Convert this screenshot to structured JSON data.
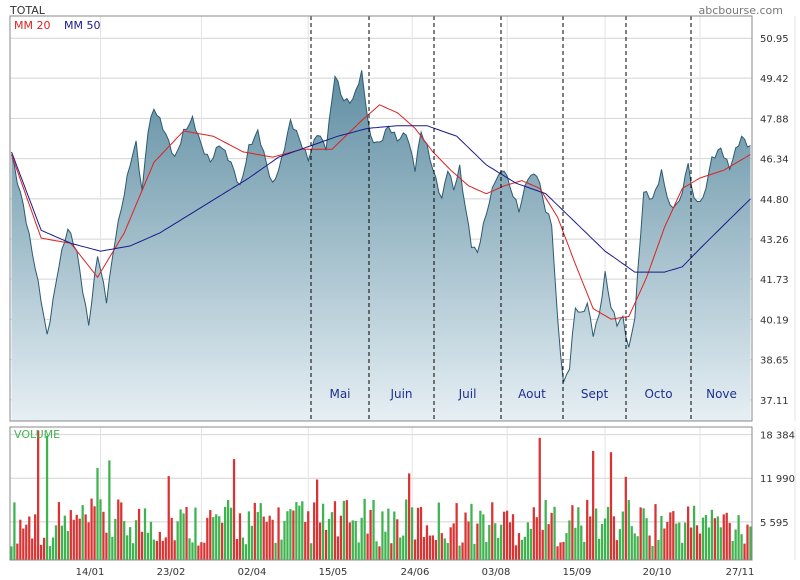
{
  "header": {
    "title": "TOTAL",
    "source": "abcbourse.com",
    "legend_mm20": "MM 20",
    "legend_mm50": "MM 50",
    "volume_label": "VOLUME"
  },
  "colors": {
    "area_top": "#5f8ea2",
    "area_bottom": "#e6eff4",
    "price_line": "#2d5a70",
    "mm20": "#dd2222",
    "mm50": "#1a1a8c",
    "vol_up": "#3fb34f",
    "vol_down": "#d93434",
    "grid": "#d4d4d4",
    "frame": "#888888",
    "month_text": "#1f2f8f",
    "volume_text": "#3fb34f"
  },
  "chart_data": [
    {
      "type": "area",
      "title": "TOTAL",
      "y_ticks": [
        "50.95",
        "49.42",
        "47.88",
        "46.34",
        "44.80",
        "43.26",
        "41.73",
        "40.19",
        "38.65",
        "37.11"
      ],
      "ylim": [
        36.3,
        51.8
      ],
      "x_ticks": [
        "14/01",
        "23/02",
        "02/04",
        "15/05",
        "24/06",
        "03/08",
        "15/09",
        "20/10",
        "27/11"
      ],
      "month_labels": [
        "Mai",
        "Juin",
        "Juil",
        "Aout",
        "Sept",
        "Octo",
        "Nove"
      ],
      "grid": true,
      "legend": "top-left",
      "session_count": 250,
      "series": [
        {
          "name": "TOTAL",
          "anchors": [
            [
              0,
              46.5
            ],
            [
              4,
              44.6
            ],
            [
              7,
              42.7
            ],
            [
              10,
              40.9
            ],
            [
              12,
              39.6
            ],
            [
              16,
              42.3
            ],
            [
              19,
              43.6
            ],
            [
              22,
              42.8
            ],
            [
              24,
              41.4
            ],
            [
              26,
              40.0
            ],
            [
              29,
              42.6
            ],
            [
              32,
              40.9
            ],
            [
              35,
              43.4
            ],
            [
              38,
              45.0
            ],
            [
              40,
              46.1
            ],
            [
              42,
              46.9
            ],
            [
              44,
              45.1
            ],
            [
              46,
              47.5
            ],
            [
              48,
              48.3
            ],
            [
              52,
              47.2
            ],
            [
              55,
              46.4
            ],
            [
              58,
              47.4
            ],
            [
              61,
              47.8
            ],
            [
              64,
              46.8
            ],
            [
              67,
              46.3
            ],
            [
              70,
              46.9
            ],
            [
              74,
              46.1
            ],
            [
              77,
              45.3
            ],
            [
              80,
              46.8
            ],
            [
              83,
              47.3
            ],
            [
              86,
              46.1
            ],
            [
              88,
              45.4
            ],
            [
              91,
              46.3
            ],
            [
              94,
              47.7
            ],
            [
              97,
              47.1
            ],
            [
              100,
              46.4
            ],
            [
              103,
              47.3
            ],
            [
              106,
              46.7
            ],
            [
              109,
              49.6
            ],
            [
              112,
              48.6
            ],
            [
              115,
              48.5
            ],
            [
              118,
              49.6
            ],
            [
              121,
              47.2
            ],
            [
              124,
              46.9
            ],
            [
              127,
              47.5
            ],
            [
              130,
              47.1
            ],
            [
              133,
              47.4
            ],
            [
              136,
              45.9
            ],
            [
              138,
              47.3
            ],
            [
              140,
              46.8
            ],
            [
              143,
              45.6
            ],
            [
              145,
              44.8
            ],
            [
              147,
              45.9
            ],
            [
              149,
              45.1
            ],
            [
              151,
              46.0
            ],
            [
              153,
              44.5
            ],
            [
              155,
              43.1
            ],
            [
              157,
              42.7
            ],
            [
              160,
              44.2
            ],
            [
              163,
              45.6
            ],
            [
              166,
              46.0
            ],
            [
              168,
              45.2
            ],
            [
              171,
              44.3
            ],
            [
              174,
              45.7
            ],
            [
              177,
              45.8
            ],
            [
              180,
              44.3
            ],
            [
              182,
              43.8
            ],
            [
              184,
              40.2
            ],
            [
              186,
              37.8
            ],
            [
              188,
              38.4
            ],
            [
              190,
              40.6
            ],
            [
              192,
              40.3
            ],
            [
              194,
              40.8
            ],
            [
              196,
              39.7
            ],
            [
              198,
              40.4
            ],
            [
              200,
              41.9
            ],
            [
              202,
              40.6
            ],
            [
              204,
              40.0
            ],
            [
              206,
              40.3
            ],
            [
              208,
              39.1
            ],
            [
              210,
              40.3
            ],
            [
              213,
              45.0
            ],
            [
              216,
              44.8
            ],
            [
              219,
              45.9
            ],
            [
              222,
              44.4
            ],
            [
              225,
              44.6
            ],
            [
              228,
              46.2
            ],
            [
              230,
              44.8
            ],
            [
              233,
              44.7
            ],
            [
              236,
              46.3
            ],
            [
              239,
              46.8
            ],
            [
              242,
              46.0
            ],
            [
              244,
              46.6
            ],
            [
              246,
              47.1
            ],
            [
              249,
              46.8
            ]
          ]
        },
        {
          "name": "MM 20",
          "anchors": [
            [
              0,
              46.5
            ],
            [
              10,
              43.3
            ],
            [
              20,
              43.1
            ],
            [
              29,
              41.8
            ],
            [
              38,
              43.5
            ],
            [
              48,
              46.2
            ],
            [
              58,
              47.4
            ],
            [
              68,
              47.2
            ],
            [
              78,
              46.6
            ],
            [
              88,
              46.4
            ],
            [
              98,
              46.7
            ],
            [
              108,
              46.7
            ],
            [
              118,
              47.8
            ],
            [
              124,
              48.4
            ],
            [
              130,
              48.1
            ],
            [
              136,
              47.5
            ],
            [
              142,
              46.6
            ],
            [
              148,
              45.9
            ],
            [
              154,
              45.3
            ],
            [
              160,
              45.0
            ],
            [
              166,
              45.3
            ],
            [
              172,
              45.5
            ],
            [
              178,
              45.2
            ],
            [
              184,
              44.1
            ],
            [
              190,
              42.3
            ],
            [
              196,
              40.6
            ],
            [
              202,
              40.2
            ],
            [
              208,
              40.3
            ],
            [
              214,
              41.8
            ],
            [
              220,
              43.7
            ],
            [
              226,
              45.2
            ],
            [
              232,
              45.6
            ],
            [
              240,
              45.9
            ],
            [
              249,
              46.5
            ]
          ]
        },
        {
          "name": "MM 50",
          "anchors": [
            [
              0,
              46.6
            ],
            [
              10,
              43.6
            ],
            [
              20,
              43.1
            ],
            [
              30,
              42.8
            ],
            [
              40,
              43.0
            ],
            [
              50,
              43.5
            ],
            [
              60,
              44.2
            ],
            [
              70,
              44.9
            ],
            [
              80,
              45.6
            ],
            [
              90,
              46.4
            ],
            [
              100,
              46.8
            ],
            [
              110,
              47.2
            ],
            [
              120,
              47.5
            ],
            [
              130,
              47.6
            ],
            [
              140,
              47.6
            ],
            [
              150,
              47.2
            ],
            [
              160,
              46.1
            ],
            [
              170,
              45.4
            ],
            [
              180,
              45.0
            ],
            [
              190,
              43.9
            ],
            [
              200,
              42.8
            ],
            [
              210,
              42.0
            ],
            [
              220,
              42.0
            ],
            [
              226,
              42.2
            ],
            [
              232,
              42.9
            ],
            [
              240,
              43.8
            ],
            [
              249,
              44.8
            ]
          ]
        }
      ]
    },
    {
      "type": "bar",
      "title": "VOLUME",
      "y_ticks": [
        "18 384",
        "11 990",
        "5 595"
      ],
      "ylim": [
        0,
        19500
      ],
      "x_ticks": [
        "14/01",
        "23/02",
        "02/04",
        "15/05",
        "24/06",
        "03/08",
        "15/09",
        "20/10",
        "27/11"
      ],
      "grid": true,
      "bar_count": 250,
      "typical_range": [
        2000,
        9000
      ],
      "peaks": [
        {
          "index": 9,
          "value": 19000
        },
        {
          "index": 12,
          "value": 18200
        },
        {
          "index": 29,
          "value": 13500
        },
        {
          "index": 33,
          "value": 14600
        },
        {
          "index": 53,
          "value": 12300
        },
        {
          "index": 75,
          "value": 14800
        },
        {
          "index": 103,
          "value": 11800
        },
        {
          "index": 134,
          "value": 12700
        },
        {
          "index": 178,
          "value": 17900
        },
        {
          "index": 196,
          "value": 16000
        },
        {
          "index": 202,
          "value": 15800
        },
        {
          "index": 207,
          "value": 12200
        }
      ]
    }
  ]
}
